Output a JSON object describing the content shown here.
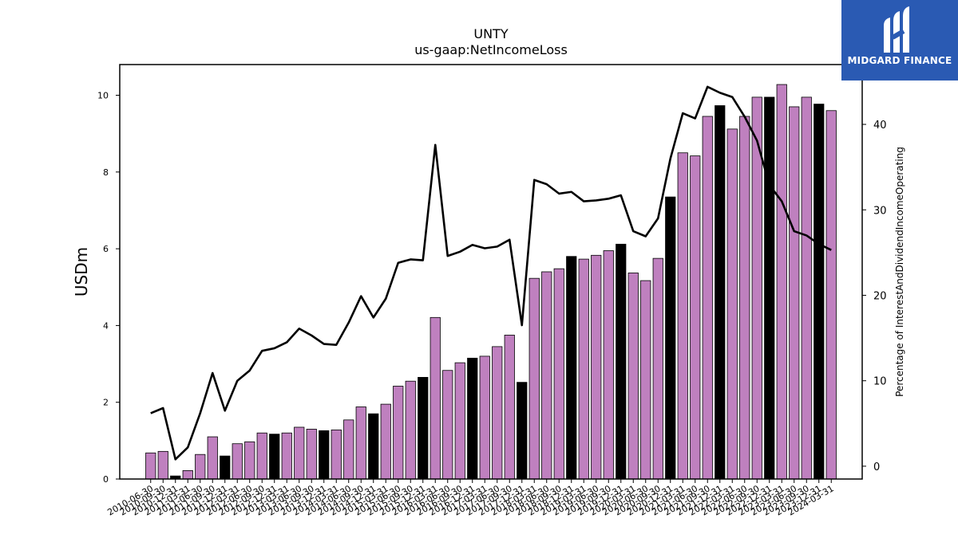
{
  "chart_data": {
    "type": "bar",
    "title": "UNTY",
    "subtitle": "us-gaap:NetIncomeLoss",
    "ylabel": "USDm",
    "y2label": "Percentage of InterestAndDividendIncomeOperating",
    "ylim": [
      0,
      10.8
    ],
    "y2lim": [
      -1.5,
      47
    ],
    "yticks": [
      0,
      2,
      4,
      6,
      8,
      10
    ],
    "y2ticks": [
      0,
      10,
      20,
      30,
      40
    ],
    "bar_colors": {
      "normal": "#bf80bf",
      "q4": "#000000"
    },
    "line_color": "#000000",
    "categories": [
      "2010-06-30",
      "2010-09-30",
      "2010-12-31",
      "2011-03-31",
      "2011-06-30",
      "2011-09-30",
      "2011-12-31",
      "2012-03-31",
      "2012-06-30",
      "2012-09-30",
      "2012-12-31",
      "2013-03-31",
      "2013-06-30",
      "2013-09-30",
      "2013-12-31",
      "2014-03-31",
      "2014-06-30",
      "2014-09-30",
      "2014-12-31",
      "2015-03-31",
      "2015-06-30",
      "2015-09-30",
      "2015-12-31",
      "2016-03-31",
      "2016-06-30",
      "2016-09-30",
      "2016-12-31",
      "2017-03-31",
      "2017-06-30",
      "2017-09-30",
      "2017-12-31",
      "2018-03-31",
      "2018-06-30",
      "2018-09-30",
      "2018-12-31",
      "2019-03-31",
      "2019-06-30",
      "2019-09-30",
      "2019-12-31",
      "2020-03-31",
      "2020-06-30",
      "2020-09-30",
      "2020-12-31",
      "2021-03-31",
      "2021-06-30",
      "2021-09-30",
      "2021-12-31",
      "2022-03-31",
      "2022-06-30",
      "2022-09-30",
      "2022-12-31",
      "2023-03-31",
      "2023-06-30",
      "2023-09-30",
      "2023-12-31",
      "2024-03-31"
    ],
    "values": [
      0.68,
      0.72,
      0.08,
      0.22,
      0.64,
      1.1,
      0.6,
      0.92,
      0.97,
      1.2,
      1.17,
      1.2,
      1.35,
      1.3,
      1.26,
      1.28,
      1.54,
      1.88,
      1.7,
      1.95,
      2.42,
      2.55,
      2.65,
      4.21,
      2.83,
      3.03,
      3.15,
      3.2,
      3.45,
      3.75,
      2.52,
      5.23,
      5.4,
      5.48,
      5.8,
      5.73,
      5.83,
      5.95,
      6.12,
      5.37,
      5.17,
      5.75,
      7.35,
      8.5,
      8.42,
      9.45,
      9.73,
      9.12,
      9.45,
      9.95,
      9.95,
      10.28,
      9.7,
      9.95,
      9.77,
      9.6
    ],
    "highlight_indices": [
      2,
      6,
      10,
      14,
      18,
      22,
      26,
      30,
      34,
      38,
      42,
      46,
      50,
      54
    ],
    "line_series": {
      "values": [
        6.2,
        6.8,
        0.8,
        2.2,
        6.2,
        10.9,
        6.5,
        10.0,
        11.2,
        13.5,
        13.8,
        14.5,
        16.1,
        15.3,
        14.3,
        14.2,
        16.8,
        19.9,
        17.4,
        19.6,
        23.8,
        24.2,
        24.1,
        37.6,
        24.6,
        25.1,
        25.9,
        25.5,
        25.7,
        26.5,
        16.5,
        33.5,
        33.0,
        31.9,
        32.1,
        31.0,
        31.1,
        31.3,
        31.7,
        27.5,
        26.9,
        29.0,
        36.0,
        41.3,
        40.7,
        44.4,
        43.7,
        43.2,
        40.9,
        38.1,
        32.9,
        31.0,
        27.5,
        27.0,
        26.0,
        25.3
      ]
    }
  },
  "watermark": {
    "text": "MIDGARD FINANCE",
    "background": "#2a5ab3",
    "icon": "midgard-logo-icon"
  }
}
